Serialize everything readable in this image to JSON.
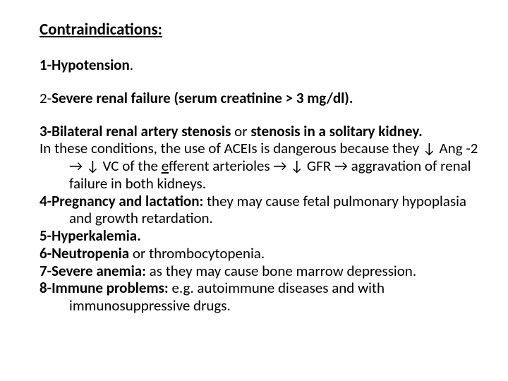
{
  "heading": "Contraindications:",
  "item1_label": "1-Hypotension",
  "item1_period": ".",
  "item2_prefix": "2-",
  "item2_bold": "Severe renal failure (serum creatinine > 3 mg/dl).",
  "item3_bold_a": "3-Bilateral renal artery stenosis",
  "item3_mid": " or ",
  "item3_bold_b": "stenosis in a solitary kidney.",
  "item3_body1": "In these conditions, the use of ACEIs is dangerous because they ↓ Ang -2 → ↓ VC of the ",
  "item3_ef": "e",
  "item3_body2": "fferent arterioles → ↓ GFR → aggravation of renal failure in both kidneys.",
  "item4_bold": "4-Pregnancy and lactation:",
  "item4_body": " they may cause fetal pulmonary hypoplasia and growth retardation.",
  "item5": "5-Hyperkalemia.",
  "item6_bold": "6-Neutropenia",
  "item6_body": " or thrombocytopenia.",
  "item7_bold": "7-Severe anemia:",
  "item7_body": " as they may cause bone marrow depression.",
  "item8_bold": "8-Immune problems:",
  "item8_body": " e.g. autoimmune diseases and with immunosuppressive drugs.",
  "colors": {
    "text": "#000000",
    "background": "#ffffff"
  },
  "fontsize_pt": 21,
  "heading_fontsize_pt": 23
}
